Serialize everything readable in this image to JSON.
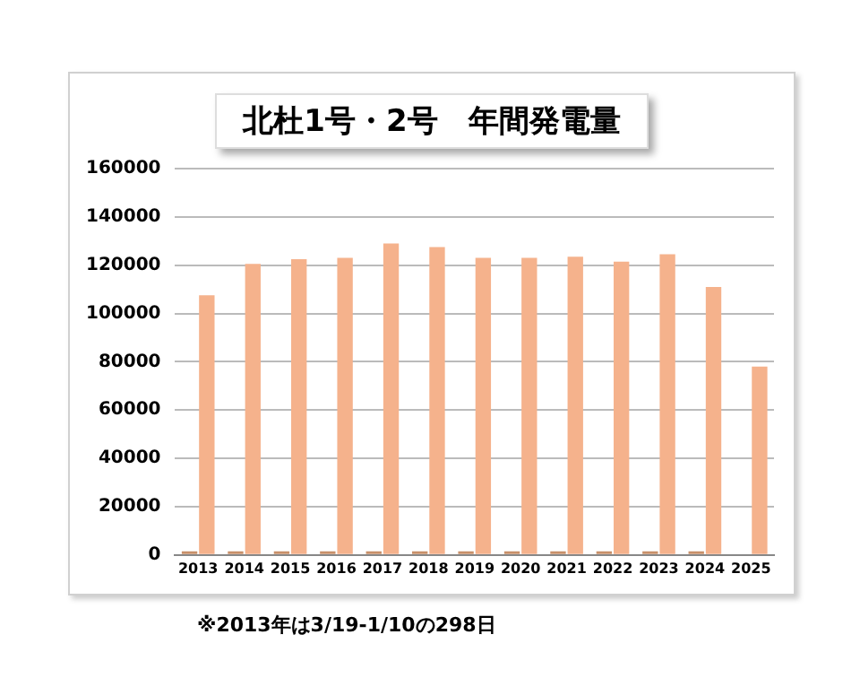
{
  "chart_data": {
    "type": "bar",
    "title": "北杜1号・2号　年間発電量",
    "categories": [
      "2013",
      "2014",
      "2015",
      "2016",
      "2017",
      "2018",
      "2019",
      "2020",
      "2021",
      "2022",
      "2023",
      "2024",
      "2025"
    ],
    "series": [
      {
        "color": "#c8906a",
        "values": [
          1500,
          1500,
          1500,
          1500,
          1500,
          1500,
          1500,
          1500,
          1500,
          1500,
          1500,
          1500,
          null
        ]
      },
      {
        "color": "#f5b28c",
        "values": [
          107500,
          120500,
          122500,
          123000,
          129000,
          127500,
          123000,
          123000,
          123500,
          121500,
          124500,
          111000,
          78000
        ]
      }
    ],
    "ylim": [
      0,
      160000
    ],
    "yticks": [
      0,
      20000,
      40000,
      60000,
      80000,
      100000,
      120000,
      140000,
      160000
    ],
    "grid": "y",
    "legend": false,
    "annotations": [
      "※2013年は3/19-1/10の298日"
    ]
  }
}
